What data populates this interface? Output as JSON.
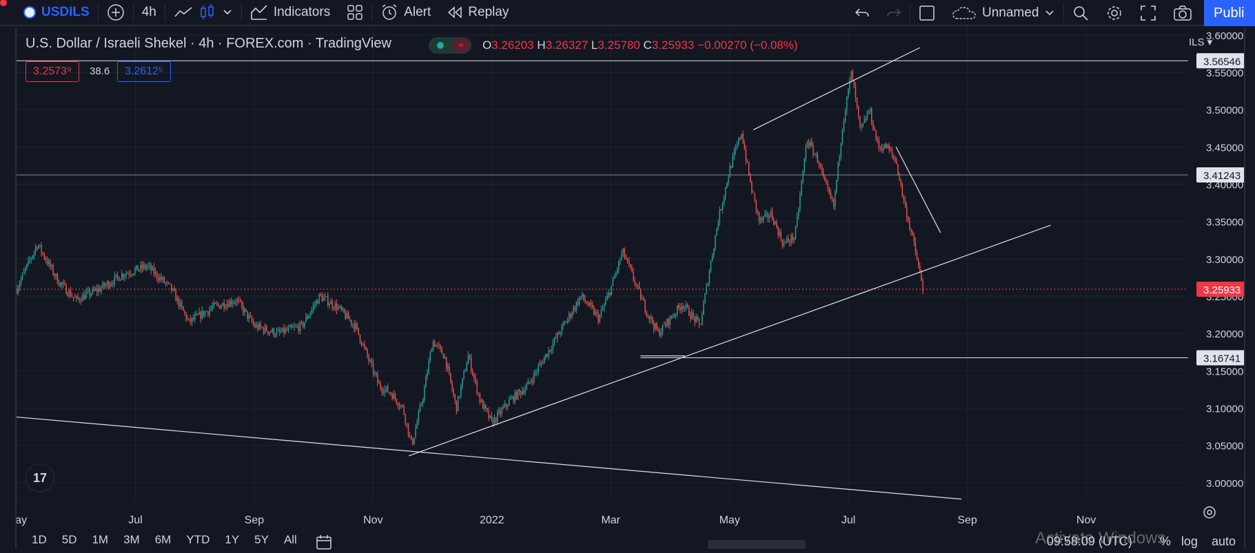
{
  "toolbar": {
    "symbol": "USDILS",
    "interval": "4h",
    "indicators_label": "Indicators",
    "alert_label": "Alert",
    "replay_label": "Replay",
    "layout_name": "Unnamed",
    "publish_label": "Publi"
  },
  "legend": {
    "title": "U.S. Dollar / Israeli Shekel · 4h · FOREX.com · TradingView",
    "open_label": "O",
    "open": "3.26203",
    "high_label": "H",
    "high": "3.26327",
    "low_label": "L",
    "low": "3.25780",
    "close_label": "C",
    "close": "3.25933",
    "change": "−0.00270 (−0.08%)",
    "bid": "3.2573⁹",
    "spread": "38.6",
    "ask": "3.2612⁵",
    "status_wave": "≈"
  },
  "currency_label": "ILS",
  "colors": {
    "background": "#131722",
    "up": "#26a69a",
    "down": "#ef5350",
    "price_label": "#f23645",
    "accent": "#2962ff"
  },
  "chart_data": {
    "type": "candlestick",
    "title": "U.S. Dollar / Israeli Shekel · 4h · FOREX.com · TradingView",
    "y_ticks": [
      3.0,
      3.05,
      3.1,
      3.15,
      3.2,
      3.25,
      3.3,
      3.35,
      3.4,
      3.45,
      3.5,
      3.55,
      3.6
    ],
    "y_tick_labels": [
      "3.00000",
      "3.05000",
      "3.10000",
      "3.15000",
      "3.20000",
      "3.25000",
      "3.30000",
      "3.35000",
      "3.40000",
      "3.45000",
      "3.50000",
      "3.55000",
      "3.60000"
    ],
    "ylim": [
      2.975,
      3.61
    ],
    "x_ticks": [
      "May",
      "Jul",
      "Sep",
      "Nov",
      "2022",
      "Mar",
      "May",
      "Jul",
      "Sep",
      "Nov"
    ],
    "x_tick_index": [
      0,
      2,
      4,
      6,
      8,
      10,
      12,
      14,
      16,
      18
    ],
    "x_range_months": [
      0,
      19.6
    ],
    "grid": true,
    "current_price": 3.25933,
    "current_price_label": "3.25933",
    "horizontal_levels": [
      {
        "value": 3.56546,
        "label": "3.56546"
      },
      {
        "value": 3.41243,
        "label": "3.41243"
      },
      {
        "value": 3.16741,
        "label": "3.16741"
      }
    ],
    "trend_lines": [
      {
        "x1": 0.0,
        "y1": 3.088,
        "x2": 15.9,
        "y2": 2.978
      },
      {
        "x1": 6.6,
        "y1": 3.036,
        "x2": 17.4,
        "y2": 3.345
      },
      {
        "x1": 12.4,
        "y1": 3.473,
        "x2": 15.2,
        "y2": 3.583
      },
      {
        "x1": 10.5,
        "y1": 3.17,
        "x2": 11.25,
        "y2": 3.17
      },
      {
        "x1": 14.8,
        "y1": 3.45,
        "x2": 15.55,
        "y2": 3.335
      }
    ],
    "price_path_months": [
      0,
      0.35,
      0.7,
      1.0,
      1.4,
      1.8,
      2.2,
      2.6,
      2.9,
      3.3,
      3.7,
      4.0,
      4.4,
      4.8,
      5.1,
      5.4,
      5.7,
      5.9,
      6.1,
      6.3,
      6.5,
      6.65,
      6.85,
      7.0,
      7.2,
      7.4,
      7.6,
      7.8,
      8.0,
      8.3,
      8.6,
      8.9,
      9.2,
      9.5,
      9.8,
      10.0,
      10.2,
      10.4,
      10.6,
      10.8,
      11.0,
      11.2,
      11.5,
      11.8,
      12.0,
      12.2,
      12.35,
      12.5,
      12.7,
      12.9,
      13.1,
      13.3,
      13.5,
      13.6,
      13.75,
      13.9,
      14.05,
      14.2,
      14.35,
      14.5,
      14.65,
      14.8,
      14.95,
      15.1,
      15.25
    ],
    "price_path_values": [
      3.26,
      3.32,
      3.27,
      3.245,
      3.26,
      3.28,
      3.29,
      3.26,
      3.215,
      3.235,
      3.245,
      3.21,
      3.2,
      3.21,
      3.25,
      3.235,
      3.21,
      3.17,
      3.13,
      3.12,
      3.1,
      3.05,
      3.12,
      3.19,
      3.17,
      3.1,
      3.17,
      3.11,
      3.08,
      3.11,
      3.13,
      3.17,
      3.21,
      3.25,
      3.22,
      3.26,
      3.31,
      3.27,
      3.23,
      3.2,
      3.22,
      3.24,
      3.21,
      3.35,
      3.42,
      3.47,
      3.4,
      3.35,
      3.36,
      3.32,
      3.33,
      3.46,
      3.43,
      3.4,
      3.37,
      3.48,
      3.55,
      3.47,
      3.5,
      3.45,
      3.45,
      3.43,
      3.37,
      3.32,
      3.25933
    ]
  },
  "bottom": {
    "ranges": [
      "1D",
      "5D",
      "1M",
      "3M",
      "6M",
      "YTD",
      "1Y",
      "5Y",
      "All"
    ],
    "time": "09:58:09 (UTC)",
    "pct": "%",
    "log": "log",
    "auto": "auto",
    "watermark": "Activate Windows"
  },
  "tv_logo_text": "17"
}
